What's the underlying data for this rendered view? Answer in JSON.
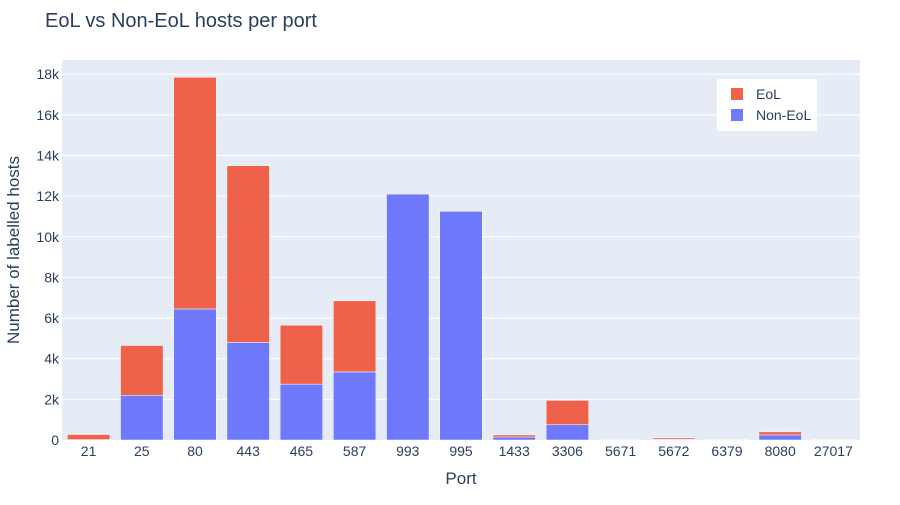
{
  "chart_data": {
    "type": "bar",
    "barmode": "stack",
    "title": "EoL vs Non-EoL hosts per port",
    "xlabel": "Port",
    "ylabel": "Number of labelled hosts",
    "categories": [
      "21",
      "25",
      "80",
      "443",
      "465",
      "587",
      "993",
      "995",
      "1433",
      "3306",
      "5671",
      "5672",
      "6379",
      "8080",
      "27017"
    ],
    "series": [
      {
        "name": "Non-EoL",
        "color": "#636efa",
        "values": [
          20,
          2200,
          6450,
          4800,
          2750,
          3350,
          12100,
          11250,
          150,
          750,
          10,
          30,
          10,
          250,
          10
        ]
      },
      {
        "name": "EoL",
        "color": "#ef553b",
        "values": [
          250,
          2450,
          11400,
          8700,
          2900,
          3500,
          0,
          0,
          100,
          1200,
          0,
          70,
          10,
          150,
          30
        ]
      }
    ],
    "ylim": [
      0,
      18700
    ],
    "yticks": [
      0,
      2000,
      4000,
      6000,
      8000,
      10000,
      12000,
      14000,
      16000,
      18000
    ],
    "ytick_labels": [
      "0",
      "2k",
      "4k",
      "6k",
      "8k",
      "10k",
      "12k",
      "14k",
      "16k",
      "18k"
    ],
    "legend": {
      "position": "top-right",
      "order": [
        "EoL",
        "Non-EoL"
      ]
    },
    "grid": true,
    "plot_bg": "#e5ecf6"
  }
}
